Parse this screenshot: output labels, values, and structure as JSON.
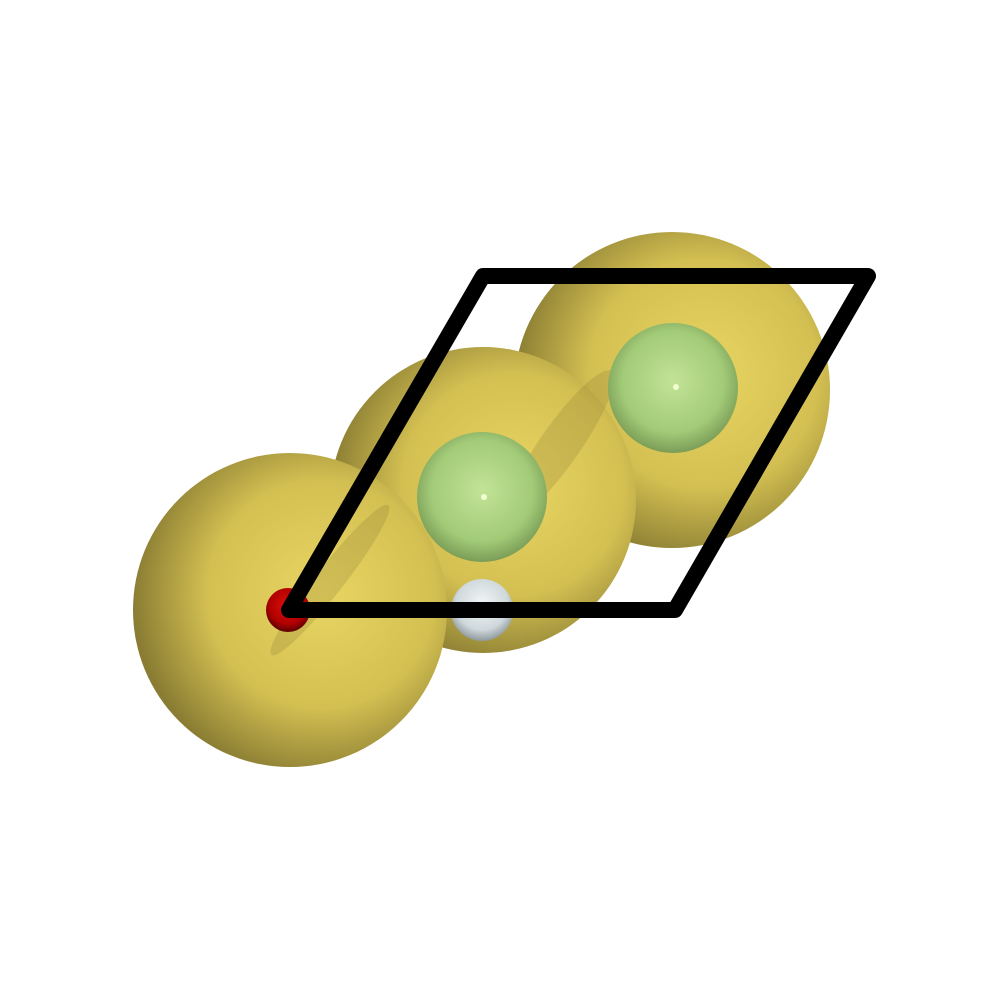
{
  "scene": {
    "background": "#ffffff",
    "cell_outline_color": "#000000",
    "atoms": [
      {
        "name": "large-yellow-atom-front",
        "element_color": "#d9c555",
        "shade_color": "#7a6e2c"
      },
      {
        "name": "large-yellow-atom-middle",
        "element_color": "#d9c555",
        "shade_color": "#7a6e2c"
      },
      {
        "name": "large-yellow-atom-back",
        "element_color": "#d9c555",
        "shade_color": "#7a6e2c"
      },
      {
        "name": "green-atom-middle",
        "element_color": "#a6d07a",
        "shade_color": "#5d7c42"
      },
      {
        "name": "green-atom-back",
        "element_color": "#a6d07a",
        "shade_color": "#5d7c42"
      },
      {
        "name": "white-atom",
        "element_color": "#dfe6e8",
        "shade_color": "#8a9599"
      },
      {
        "name": "red-atom",
        "element_color": "#c40000",
        "shade_color": "#550000"
      }
    ]
  }
}
